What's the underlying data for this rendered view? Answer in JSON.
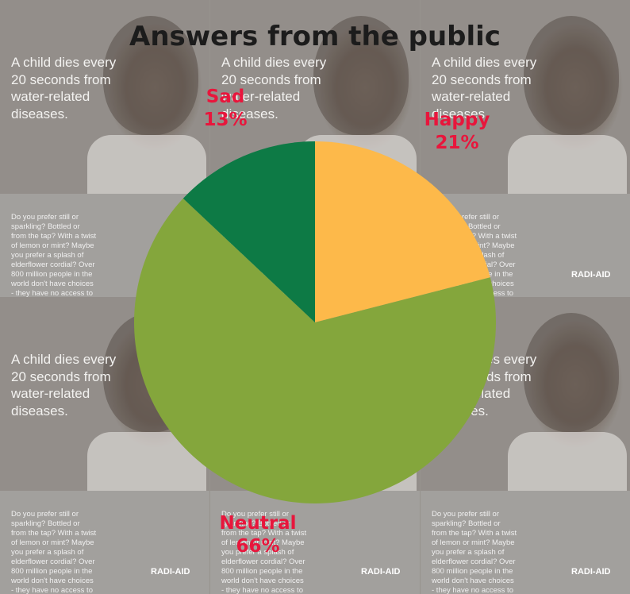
{
  "chart_data": {
    "type": "pie",
    "title": "Answers from the public",
    "categories": [
      "Happy",
      "Neutral",
      "Sad"
    ],
    "values": [
      21,
      66,
      13
    ],
    "value_labels": [
      "21%",
      "66%",
      "13%"
    ],
    "colors": [
      "#fdb94a",
      "#84a63c",
      "#0d7a45"
    ],
    "label_color": "#e8163c"
  },
  "background": {
    "headline": "A child dies every 20 seconds from water-related diseases.",
    "body": "Do you prefer still or sparkling? Bottled or from the tap? With a twist of lemon or mint? Maybe you prefer a splash of elderflower cordial? Over 800 million people in the world don't have choices - they have no access to clean water at all.",
    "brand": "RADI-AID"
  }
}
